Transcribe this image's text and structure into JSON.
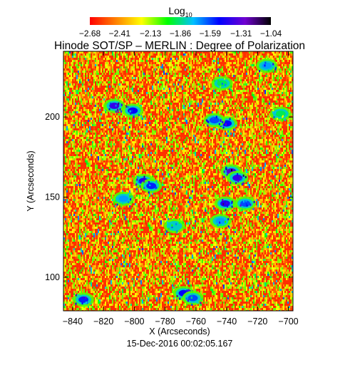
{
  "chart_data": {
    "type": "heatmap",
    "title": "Hinode SOT/SP – MERLIN : Degree of Polarization",
    "colorbar": {
      "label_base": "Log",
      "label_sub": "10",
      "ticks": [
        "-2.68",
        "-2.41",
        "-2.13",
        "-1.86",
        "-1.59",
        "-1.31",
        "-1.04"
      ],
      "range": [
        -2.68,
        -1.04
      ],
      "colormap": [
        "#ff0000",
        "#ff8000",
        "#ffff00",
        "#00ff00",
        "#00c0ff",
        "#0000ff",
        "#7000d0",
        "#000000"
      ]
    },
    "xlabel": "X (Arcseconds)",
    "ylabel": "Y (Arcseconds)",
    "xlim": [
      -846,
      -697
    ],
    "ylim": [
      79,
      241
    ],
    "xticks": [
      "-840",
      "-820",
      "-800",
      "-780",
      "-760",
      "-740",
      "-720",
      "-700"
    ],
    "xtick_values": [
      -840,
      -820,
      -800,
      -780,
      -760,
      -740,
      -720,
      -700
    ],
    "yticks": [
      "100",
      "150",
      "200"
    ],
    "ytick_values": [
      100,
      150,
      200
    ],
    "background_level": -2.55,
    "regions": [
      {
        "x": -813,
        "y": 207,
        "level": -1.4
      },
      {
        "x": -801,
        "y": 204,
        "level": -1.5
      },
      {
        "x": -794,
        "y": 160,
        "level": -1.45
      },
      {
        "x": -789,
        "y": 157,
        "level": -1.55
      },
      {
        "x": -807,
        "y": 149,
        "level": -1.7
      },
      {
        "x": -740,
        "y": 196,
        "level": -1.5
      },
      {
        "x": -748,
        "y": 198,
        "level": -1.6
      },
      {
        "x": -737,
        "y": 166,
        "level": -1.35
      },
      {
        "x": -733,
        "y": 162,
        "level": -1.4
      },
      {
        "x": -741,
        "y": 146,
        "level": -1.45
      },
      {
        "x": -728,
        "y": 146,
        "level": -1.6
      },
      {
        "x": -744,
        "y": 135,
        "level": -1.7
      },
      {
        "x": -774,
        "y": 132,
        "level": -1.8
      },
      {
        "x": -768,
        "y": 90,
        "level": -1.5
      },
      {
        "x": -762,
        "y": 87,
        "level": -1.6
      },
      {
        "x": -833,
        "y": 86,
        "level": -1.55
      },
      {
        "x": -714,
        "y": 232,
        "level": -1.7
      },
      {
        "x": -743,
        "y": 221,
        "level": -1.9
      },
      {
        "x": -705,
        "y": 202,
        "level": -1.9
      }
    ],
    "timestamp": "15-Dec-2016 00:02:05.167"
  }
}
